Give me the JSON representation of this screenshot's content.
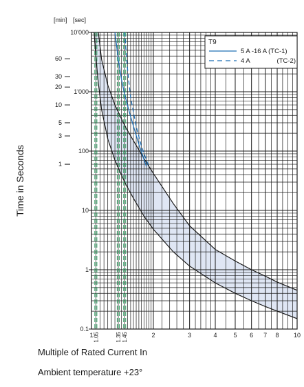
{
  "chart_data": {
    "type": "area",
    "legend_title": "T9",
    "legend_placement": "top-right",
    "ylabel": "Time in Seconds",
    "xlabel": "Multiple of Rated Current In",
    "subtitle": "Ambient temperature +23°",
    "min_axis_header": "[min]",
    "sec_axis_header": "[sec]",
    "x_scale": "log",
    "y_scale": "log",
    "xlim": [
      1,
      10
    ],
    "ylim": [
      0.1,
      10000
    ],
    "x_major_ticks": [
      {
        "value": 1,
        "label": "1"
      },
      {
        "value": 2,
        "label": "2"
      },
      {
        "value": 3,
        "label": "3"
      },
      {
        "value": 4,
        "label": "4"
      },
      {
        "value": 5,
        "label": "5"
      },
      {
        "value": 6,
        "label": "6"
      },
      {
        "value": 7,
        "label": "7"
      },
      {
        "value": 8,
        "label": "8"
      },
      {
        "value": 10,
        "label": "10"
      }
    ],
    "x_special_ticks": [
      {
        "value": 1.05,
        "label": "1.05"
      },
      {
        "value": 1.35,
        "label": "1.35"
      },
      {
        "value": 1.45,
        "label": "1.45"
      }
    ],
    "y_sec_ticks": [
      {
        "value": 0.1,
        "label": "0.1"
      },
      {
        "value": 1,
        "label": "1"
      },
      {
        "value": 10,
        "label": "10"
      },
      {
        "value": 100,
        "label": "100"
      },
      {
        "value": 1000,
        "label": "1'000"
      },
      {
        "value": 10000,
        "label": "10'000"
      }
    ],
    "y_min_ticks": [
      {
        "minutes": 60,
        "label": "60"
      },
      {
        "minutes": 30,
        "label": "30"
      },
      {
        "minutes": 20,
        "label": "20"
      },
      {
        "minutes": 10,
        "label": "10"
      },
      {
        "minutes": 5,
        "label": "5"
      },
      {
        "minutes": 3,
        "label": "3"
      },
      {
        "minutes": 1,
        "label": "1"
      }
    ],
    "series": [
      {
        "name": "5 A -16 A (TC-1)",
        "style": "solid",
        "color": "#1f6fb5",
        "x": [
          1.3,
          1.35,
          1.4,
          1.45,
          1.55,
          1.7,
          1.85
        ],
        "y": [
          10000,
          3500,
          1600,
          900,
          380,
          130,
          55
        ]
      },
      {
        "name": "4 A",
        "style": "dashed",
        "color": "#1f6fb5",
        "legend_suffix": "(TC-2)",
        "x": [
          1.45,
          1.5,
          1.55,
          1.65,
          1.75,
          1.9
        ],
        "y": [
          10000,
          2200,
          800,
          260,
          120,
          55
        ]
      }
    ],
    "band": {
      "upper": {
        "x": [
          1.08,
          1.12,
          1.2,
          1.3,
          1.45,
          1.6,
          1.8,
          2.0,
          2.5,
          3.0,
          4.0,
          5.0,
          6.0,
          7.0,
          8.0,
          10.0
        ],
        "y": [
          10000,
          3500,
          1300,
          600,
          270,
          150,
          75,
          42,
          13,
          5.5,
          2.2,
          1.4,
          1.0,
          0.78,
          0.62,
          0.45
        ]
      },
      "lower": {
        "x": [
          1.03,
          1.05,
          1.08,
          1.12,
          1.2,
          1.3,
          1.45,
          1.6,
          1.8,
          2.0,
          2.5,
          3.0,
          4.0,
          5.0,
          6.0,
          7.0,
          8.0,
          10.0
        ],
        "y": [
          10000,
          4000,
          1400,
          500,
          160,
          70,
          30,
          16,
          8,
          4.8,
          2.0,
          1.15,
          0.6,
          0.4,
          0.3,
          0.24,
          0.2,
          0.15
        ]
      },
      "fill": "#dfe6f4"
    },
    "limit_lines": [
      {
        "x": 1.05,
        "color": "#3aa66a",
        "style": "dashed"
      },
      {
        "x": 1.35,
        "color": "#3aa66a",
        "style": "dashed"
      },
      {
        "x": 1.45,
        "color": "#3aa66a",
        "style": "dashed"
      }
    ],
    "grid": true
  }
}
